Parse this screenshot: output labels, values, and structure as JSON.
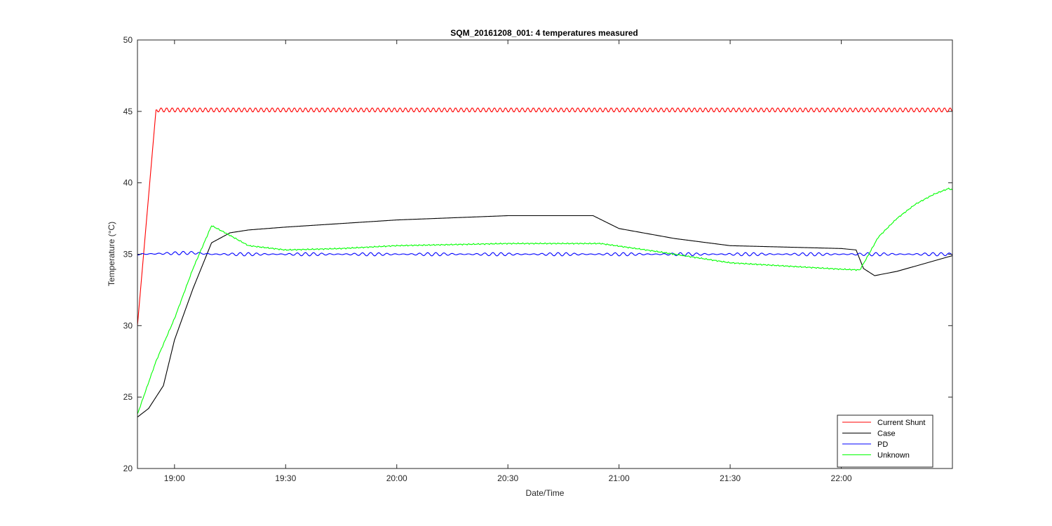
{
  "chart_data": {
    "type": "line",
    "title": "SQM_20161208_001: 4 temperatures measured",
    "xlabel": "Date/Time",
    "ylabel": "Temperature (°C)",
    "ylim": [
      20,
      50
    ],
    "yticks": [
      20,
      25,
      30,
      35,
      40,
      45,
      50
    ],
    "xlim": [
      "18:50",
      "22:30"
    ],
    "xticks": [
      "19:00",
      "19:30",
      "20:00",
      "20:30",
      "21:00",
      "21:30",
      "22:00"
    ],
    "grid": false,
    "legend_position": "bottom-right",
    "series": [
      {
        "name": "Current Shunt",
        "color": "#ff0000",
        "oscillation": 0.15,
        "points": [
          [
            "18:50",
            30.0
          ],
          [
            "18:55",
            45.1
          ],
          [
            "22:30",
            45.1
          ]
        ]
      },
      {
        "name": "Case",
        "color": "#000000",
        "oscillation": 0,
        "points": [
          [
            "18:50",
            23.6
          ],
          [
            "18:53",
            24.2
          ],
          [
            "18:57",
            25.8
          ],
          [
            "19:00",
            29.0
          ],
          [
            "19:05",
            32.6
          ],
          [
            "19:10",
            35.8
          ],
          [
            "19:15",
            36.5
          ],
          [
            "19:20",
            36.7
          ],
          [
            "19:30",
            36.9
          ],
          [
            "20:00",
            37.4
          ],
          [
            "20:30",
            37.7
          ],
          [
            "20:53",
            37.7
          ],
          [
            "21:00",
            36.8
          ],
          [
            "21:15",
            36.1
          ],
          [
            "21:30",
            35.6
          ],
          [
            "22:00",
            35.4
          ],
          [
            "22:04",
            35.3
          ],
          [
            "22:06",
            34.0
          ],
          [
            "22:09",
            33.5
          ],
          [
            "22:15",
            33.8
          ],
          [
            "22:30",
            34.9
          ]
        ]
      },
      {
        "name": "PD",
        "color": "#0000ff",
        "oscillation": 0.12,
        "points": [
          [
            "18:50",
            35.0
          ],
          [
            "19:05",
            35.1
          ],
          [
            "19:10",
            35.0
          ],
          [
            "20:00",
            35.0
          ],
          [
            "21:00",
            35.0
          ],
          [
            "22:00",
            35.0
          ],
          [
            "22:30",
            35.0
          ]
        ]
      },
      {
        "name": "Unknown",
        "color": "#00ff00",
        "oscillation": 0.05,
        "points": [
          [
            "18:50",
            23.8
          ],
          [
            "18:55",
            27.5
          ],
          [
            "19:00",
            30.5
          ],
          [
            "19:05",
            34.0
          ],
          [
            "19:10",
            37.0
          ],
          [
            "19:13",
            36.6
          ],
          [
            "19:20",
            35.6
          ],
          [
            "19:30",
            35.3
          ],
          [
            "19:45",
            35.4
          ],
          [
            "20:00",
            35.6
          ],
          [
            "20:30",
            35.75
          ],
          [
            "20:55",
            35.75
          ],
          [
            "21:10",
            35.2
          ],
          [
            "21:30",
            34.4
          ],
          [
            "22:00",
            33.95
          ],
          [
            "22:05",
            33.9
          ],
          [
            "22:07",
            34.8
          ],
          [
            "22:10",
            36.2
          ],
          [
            "22:15",
            37.5
          ],
          [
            "22:20",
            38.5
          ],
          [
            "22:25",
            39.2
          ],
          [
            "22:29",
            39.6
          ],
          [
            "22:30",
            39.5
          ]
        ]
      }
    ]
  }
}
